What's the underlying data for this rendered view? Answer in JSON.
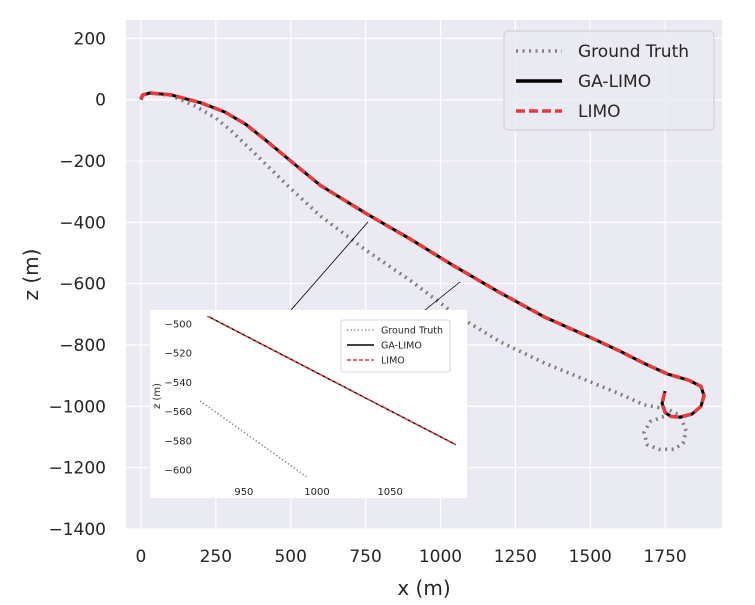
{
  "chart_data": [
    {
      "type": "line",
      "role": "main",
      "xlabel": "x (m)",
      "ylabel": "z (m)",
      "xlim": [
        -50,
        1940
      ],
      "ylim": [
        -1400,
        260
      ],
      "xticks": [
        0,
        250,
        500,
        750,
        1000,
        1250,
        1500,
        1750
      ],
      "yticks": [
        200,
        0,
        -200,
        -400,
        -600,
        -800,
        -1000,
        -1200,
        -1400
      ],
      "xtick_labels": [
        "0",
        "250",
        "500",
        "750",
        "1000",
        "1250",
        "1500",
        "1750"
      ],
      "ytick_labels": [
        "200",
        "0",
        "−200",
        "−400",
        "−600",
        "−800",
        "−1000",
        "−1200",
        "−1400"
      ],
      "grid": true,
      "background": "#eaeaf2",
      "legend_position": "top-right",
      "series": [
        {
          "name": "Ground Truth",
          "color": "#808080",
          "style": "dotted",
          "x": [
            0,
            5,
            30,
            100,
            180,
            250,
            300,
            380,
            500,
            600,
            750,
            900,
            1050,
            1200,
            1350,
            1500,
            1600,
            1680,
            1760,
            1800,
            1820,
            1810,
            1780,
            1730,
            1690,
            1680,
            1700,
            1740,
            1770
          ],
          "y": [
            0,
            15,
            22,
            14,
            -20,
            -60,
            -100,
            -175,
            -290,
            -380,
            -490,
            -590,
            -700,
            -790,
            -860,
            -920,
            -960,
            -995,
            -1010,
            -1030,
            -1080,
            -1120,
            -1140,
            -1140,
            -1125,
            -1085,
            -1050,
            -1035,
            -1025
          ]
        },
        {
          "name": "GA-LIMO",
          "color": "#000000",
          "style": "solid",
          "x": [
            0,
            5,
            30,
            100,
            200,
            280,
            350,
            420,
            500,
            600,
            750,
            900,
            1050,
            1200,
            1350,
            1500,
            1600,
            1680,
            1760,
            1830,
            1870,
            1880,
            1870,
            1840,
            1800,
            1770,
            1750,
            1740,
            1750
          ],
          "y": [
            0,
            15,
            22,
            16,
            -10,
            -40,
            -80,
            -135,
            -200,
            -280,
            -370,
            -455,
            -545,
            -630,
            -710,
            -775,
            -820,
            -860,
            -895,
            -915,
            -935,
            -965,
            -1000,
            -1025,
            -1035,
            -1033,
            -1020,
            -990,
            -950
          ]
        },
        {
          "name": "LIMO",
          "color": "#e83a3a",
          "style": "dashed",
          "x": [
            0,
            5,
            30,
            100,
            200,
            280,
            350,
            420,
            500,
            600,
            750,
            900,
            1050,
            1200,
            1350,
            1500,
            1600,
            1680,
            1760,
            1830,
            1870,
            1880,
            1870,
            1840,
            1800,
            1770,
            1750,
            1740,
            1750
          ],
          "y": [
            0,
            15,
            22,
            16,
            -10,
            -40,
            -80,
            -135,
            -200,
            -280,
            -370,
            -455,
            -545,
            -630,
            -710,
            -775,
            -820,
            -860,
            -895,
            -915,
            -935,
            -965,
            -1000,
            -1025,
            -1035,
            -1033,
            -1020,
            -990,
            -950
          ]
        }
      ]
    },
    {
      "type": "line",
      "role": "inset",
      "ylabel": "z (m)",
      "xlim": [
        920,
        1095
      ],
      "ylim": [
        -605,
        -495
      ],
      "xticks": [
        950,
        1000,
        1050
      ],
      "yticks": [
        -500,
        -520,
        -540,
        -560,
        -580,
        -600
      ],
      "xtick_labels": [
        "950",
        "1000",
        "1050"
      ],
      "ytick_labels": [
        "−500",
        "−520",
        "−540",
        "−560",
        "−580",
        "−600"
      ],
      "grid": false,
      "legend_position": "top-right",
      "series": [
        {
          "name": "Ground Truth",
          "color": "#808080",
          "style": "dotted",
          "x": [
            920,
            1000
          ],
          "y": [
            -553,
            -610
          ]
        },
        {
          "name": "GA-LIMO",
          "color": "#000000",
          "style": "solid",
          "x": [
            925,
            1095
          ],
          "y": [
            -495,
            -583
          ]
        },
        {
          "name": "LIMO",
          "color": "#e83a3a",
          "style": "dashed",
          "x": [
            925,
            1095
          ],
          "y": [
            -495,
            -583
          ]
        }
      ]
    }
  ]
}
